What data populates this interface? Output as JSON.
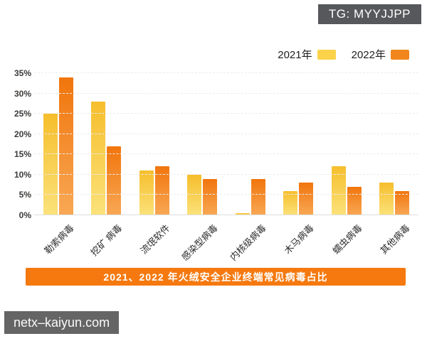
{
  "overlays": {
    "tg_badge": "TG: MYYJJPP",
    "watermark": "netx–kaiyun.com"
  },
  "legend": {
    "items": [
      {
        "label": "2021年",
        "color": "#FBD24A"
      },
      {
        "label": "2022年",
        "color": "#F0861C"
      }
    ]
  },
  "chart_data": {
    "type": "bar",
    "title": "2021、2022 年火绒安全企业终端常见病毒占比",
    "categories": [
      "勒索病毒",
      "挖矿 病毒",
      "流氓软件",
      "感染型病毒",
      "内核级病毒",
      "木马病毒",
      "蠕虫病毒",
      "其他病毒"
    ],
    "series": [
      {
        "name": "2021年",
        "color_top": "#F6BE2C",
        "color_bottom": "#FBE27A",
        "values": [
          25,
          28,
          11,
          10,
          0.5,
          6,
          12,
          8
        ]
      },
      {
        "name": "2022年",
        "color_top": "#F1750C",
        "color_bottom": "#F8A855",
        "values": [
          34,
          17,
          12,
          9,
          9,
          8,
          7,
          6
        ]
      }
    ],
    "xlabel": "",
    "ylabel": "",
    "y_ticks": [
      "0%",
      "5%",
      "10%",
      "15%",
      "20%",
      "25%",
      "30%",
      "35%"
    ],
    "ylim": [
      0,
      35
    ],
    "grid": "dashed-horizontal",
    "legend_position": "top-right",
    "banner_bg": "#F5790F"
  }
}
